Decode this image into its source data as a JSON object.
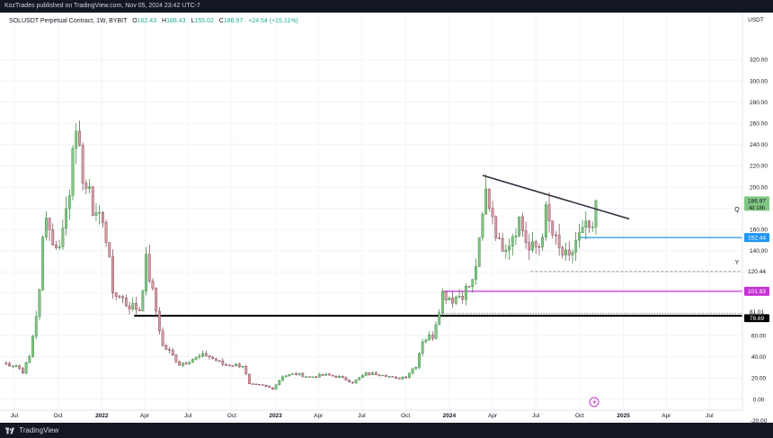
{
  "header": {
    "publisher": "KozTrades published on TradingView.com, Nov 05, 2024 23:42 UTC-7"
  },
  "legend": {
    "symbol": "SOLUSDT Perpetual Contract, 1W, BYBIT",
    "open_label": "O",
    "open": "162.43",
    "high_label": "H",
    "high": "188.43",
    "low_label": "L",
    "low": "155.02",
    "close_label": "C",
    "close": "186.97",
    "change": "+24.54 (+15.11%)"
  },
  "price_axis": {
    "currency": "USDT",
    "ticks": [
      "320.00",
      "300.00",
      "280.00",
      "260.00",
      "240.00",
      "220.00",
      "200.00",
      "180.00",
      "160.00",
      "140.00",
      "120.00",
      "100.00",
      "80.00",
      "60.00",
      "40.00",
      "20.00",
      "0.00",
      "-20.00"
    ]
  },
  "price_labels": {
    "last": "186.97",
    "countdown": "4d 18h",
    "blue": "152.44",
    "gray": "120.44",
    "purple": "101.83",
    "dotted": "81.01",
    "black": "78.69"
  },
  "marker_letters": {
    "q": "Q",
    "y": "Y"
  },
  "time_axis": {
    "ticks": [
      "Jul",
      "Oct",
      "2022",
      "Apr",
      "Jul",
      "Oct",
      "2023",
      "Apr",
      "Jul",
      "Oct",
      "2024",
      "Apr",
      "Jul",
      "Oct",
      "2025",
      "Apr",
      "Jul"
    ],
    "bold": [
      "2022",
      "2023",
      "2024",
      "2025"
    ]
  },
  "footer": {
    "brand": "TradingView"
  },
  "colors": {
    "up": "#81c784",
    "down": "#d69aa5",
    "wick_up": "#2e7d32",
    "wick_down": "#7a3b48",
    "blue": "#2196f3",
    "purple": "#c730d6",
    "black_line": "#000000",
    "trend": "#2a2e39",
    "grid": "#f0f3fa"
  },
  "chart_data": {
    "type": "candlestick",
    "title": "SOLUSDT Perpetual Contract, 1W, BYBIT",
    "interval": "1W",
    "yaxis": {
      "min": -20,
      "max": 320,
      "unit": "USDT"
    },
    "x_range": [
      "2021-06-01",
      "2025-09-08"
    ],
    "approx_closing_path": [
      [
        "2021-06-07",
        34
      ],
      [
        "2021-07-05",
        32
      ],
      [
        "2021-07-19",
        26
      ],
      [
        "2021-08-02",
        40
      ],
      [
        "2021-08-09",
        60
      ],
      [
        "2021-08-23",
        100
      ],
      [
        "2021-08-30",
        150
      ],
      [
        "2021-09-06",
        180
      ],
      [
        "2021-09-13",
        160
      ],
      [
        "2021-09-27",
        140
      ],
      [
        "2021-10-11",
        160
      ],
      [
        "2021-10-25",
        200
      ],
      [
        "2021-11-01",
        250
      ],
      [
        "2021-11-08",
        240
      ],
      [
        "2021-11-29",
        200
      ],
      [
        "2021-12-13",
        180
      ],
      [
        "2021-12-27",
        175
      ],
      [
        "2022-01-17",
        140
      ],
      [
        "2022-01-24",
        95
      ],
      [
        "2022-02-07",
        100
      ],
      [
        "2022-02-21",
        90
      ],
      [
        "2022-03-21",
        85
      ],
      [
        "2022-04-04",
        130
      ],
      [
        "2022-04-18",
        100
      ],
      [
        "2022-05-09",
        50
      ],
      [
        "2022-05-23",
        45
      ],
      [
        "2022-06-13",
        33
      ],
      [
        "2022-07-11",
        38
      ],
      [
        "2022-08-08",
        42
      ],
      [
        "2022-09-12",
        33
      ],
      [
        "2022-10-24",
        32
      ],
      [
        "2022-11-07",
        14
      ],
      [
        "2022-12-05",
        13
      ],
      [
        "2022-12-26",
        10
      ],
      [
        "2023-01-16",
        22
      ],
      [
        "2023-02-13",
        24
      ],
      [
        "2023-03-13",
        21
      ],
      [
        "2023-04-17",
        23
      ],
      [
        "2023-05-15",
        21
      ],
      [
        "2023-06-12",
        16
      ],
      [
        "2023-07-10",
        24
      ],
      [
        "2023-08-14",
        24
      ],
      [
        "2023-09-11",
        19
      ],
      [
        "2023-10-02",
        22
      ],
      [
        "2023-10-23",
        32
      ],
      [
        "2023-11-06",
        56
      ],
      [
        "2023-11-27",
        60
      ],
      [
        "2023-12-18",
        100
      ],
      [
        "2024-01-08",
        95
      ],
      [
        "2024-01-29",
        100
      ],
      [
        "2024-02-19",
        110
      ],
      [
        "2024-03-04",
        145
      ],
      [
        "2024-03-18",
        195
      ],
      [
        "2024-04-01",
        175
      ],
      [
        "2024-04-15",
        145
      ],
      [
        "2024-05-06",
        150
      ],
      [
        "2024-05-27",
        170
      ],
      [
        "2024-06-17",
        140
      ],
      [
        "2024-07-08",
        145
      ],
      [
        "2024-07-22",
        175
      ],
      [
        "2024-08-05",
        155
      ],
      [
        "2024-08-19",
        140
      ],
      [
        "2024-09-09",
        130
      ],
      [
        "2024-09-23",
        150
      ],
      [
        "2024-10-14",
        160
      ],
      [
        "2024-10-28",
        162.43
      ],
      [
        "2024-11-04",
        186.97
      ]
    ],
    "last_candle": {
      "open": 162.43,
      "high": 188.43,
      "low": 155.02,
      "close": 186.97
    },
    "levels": [
      {
        "price": 152.44,
        "color": "blue",
        "from": "2024-10-01"
      },
      {
        "price": 120.44,
        "style": "dashed",
        "from": "2024-06-20"
      },
      {
        "price": 101.83,
        "color": "purple",
        "from": "2023-12-20"
      },
      {
        "price": 81.01,
        "style": "dotted",
        "from": "2023-12-20"
      },
      {
        "price": 78.69,
        "color": "black",
        "from": "2022-03-10"
      }
    ],
    "trendline": [
      [
        "2024-03-11",
        211
      ],
      [
        "2025-01-13",
        170
      ]
    ]
  }
}
